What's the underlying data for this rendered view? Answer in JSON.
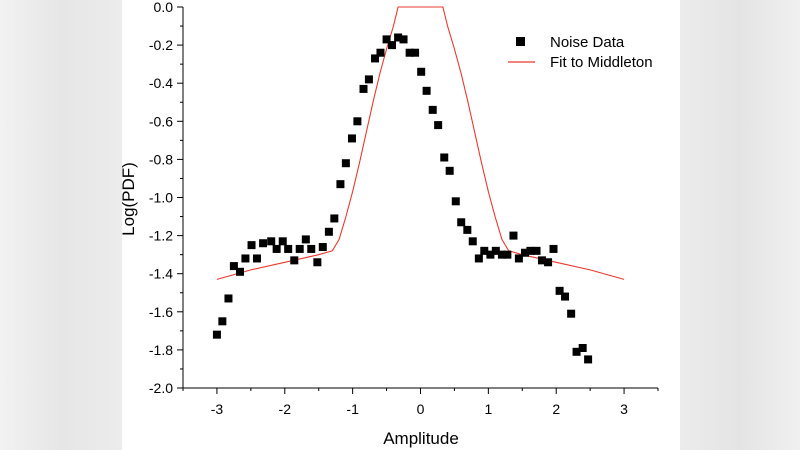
{
  "chart_data": {
    "type": "scatter",
    "xlabel": "Amplitude",
    "ylabel": "Log(PDF)",
    "xlim": [
      -3.5,
      3.5
    ],
    "ylim": [
      -2.0,
      0.0
    ],
    "xticks": [
      "-3",
      "-2",
      "-1",
      "0",
      "1",
      "2",
      "3"
    ],
    "yticks": [
      "0.0",
      "-0.2",
      "-0.4",
      "-0.6",
      "-0.8",
      "-1.0",
      "-1.2",
      "-1.4",
      "-1.6",
      "-1.8",
      "-2.0"
    ],
    "legend_position": "top-right",
    "series": [
      {
        "name": "Noise Data",
        "kind": "scatter",
        "marker": "square",
        "color": "#000000",
        "points": [
          [
            -3.0,
            -1.72
          ],
          [
            -2.92,
            -1.65
          ],
          [
            -2.83,
            -1.53
          ],
          [
            -2.75,
            -1.36
          ],
          [
            -2.66,
            -1.39
          ],
          [
            -2.58,
            -1.32
          ],
          [
            -2.49,
            -1.25
          ],
          [
            -2.41,
            -1.32
          ],
          [
            -2.32,
            -1.24
          ],
          [
            -2.2,
            -1.23
          ],
          [
            -2.12,
            -1.27
          ],
          [
            -2.03,
            -1.23
          ],
          [
            -1.95,
            -1.27
          ],
          [
            -1.86,
            -1.33
          ],
          [
            -1.78,
            -1.27
          ],
          [
            -1.69,
            -1.22
          ],
          [
            -1.61,
            -1.27
          ],
          [
            -1.52,
            -1.34
          ],
          [
            -1.44,
            -1.26
          ],
          [
            -1.35,
            -1.18
          ],
          [
            -1.27,
            -1.11
          ],
          [
            -1.18,
            -0.93
          ],
          [
            -1.1,
            -0.82
          ],
          [
            -1.01,
            -0.69
          ],
          [
            -0.93,
            -0.6
          ],
          [
            -0.84,
            -0.43
          ],
          [
            -0.76,
            -0.38
          ],
          [
            -0.67,
            -0.27
          ],
          [
            -0.59,
            -0.24
          ],
          [
            -0.5,
            -0.17
          ],
          [
            -0.42,
            -0.2
          ],
          [
            -0.33,
            -0.16
          ],
          [
            -0.25,
            -0.17
          ],
          [
            -0.16,
            -0.24
          ],
          [
            -0.08,
            -0.24
          ],
          [
            0.01,
            -0.34
          ],
          [
            0.09,
            -0.44
          ],
          [
            0.18,
            -0.54
          ],
          [
            0.26,
            -0.62
          ],
          [
            0.35,
            -0.79
          ],
          [
            0.43,
            -0.86
          ],
          [
            0.52,
            -1.02
          ],
          [
            0.6,
            -1.13
          ],
          [
            0.69,
            -1.17
          ],
          [
            0.77,
            -1.23
          ],
          [
            0.86,
            -1.32
          ],
          [
            0.94,
            -1.28
          ],
          [
            1.03,
            -1.3
          ],
          [
            1.11,
            -1.28
          ],
          [
            1.2,
            -1.3
          ],
          [
            1.28,
            -1.3
          ],
          [
            1.37,
            -1.2
          ],
          [
            1.45,
            -1.32
          ],
          [
            1.54,
            -1.29
          ],
          [
            1.62,
            -1.28
          ],
          [
            1.71,
            -1.28
          ],
          [
            1.79,
            -1.33
          ],
          [
            1.88,
            -1.34
          ],
          [
            1.96,
            -1.27
          ],
          [
            2.05,
            -1.49
          ],
          [
            2.13,
            -1.52
          ],
          [
            2.22,
            -1.61
          ],
          [
            2.3,
            -1.81
          ],
          [
            2.39,
            -1.79
          ],
          [
            2.47,
            -1.85
          ]
        ]
      },
      {
        "name": "Fit to Middleton",
        "kind": "line",
        "color": "#e8392e",
        "points": [
          [
            -3.0,
            -1.43
          ],
          [
            -2.5,
            -1.38
          ],
          [
            -2.0,
            -1.34
          ],
          [
            -1.5,
            -1.3
          ],
          [
            -1.3,
            -1.28
          ],
          [
            -1.2,
            -1.22
          ],
          [
            -1.1,
            -1.1
          ],
          [
            -1.0,
            -0.97
          ],
          [
            -0.9,
            -0.82
          ],
          [
            -0.8,
            -0.66
          ],
          [
            -0.7,
            -0.5
          ],
          [
            -0.6,
            -0.35
          ],
          [
            -0.5,
            -0.22
          ],
          [
            -0.4,
            -0.1
          ],
          [
            -0.33,
            0.0
          ],
          [
            0.33,
            0.0
          ],
          [
            0.4,
            -0.1
          ],
          [
            0.5,
            -0.22
          ],
          [
            0.6,
            -0.35
          ],
          [
            0.7,
            -0.5
          ],
          [
            0.8,
            -0.66
          ],
          [
            0.9,
            -0.82
          ],
          [
            1.0,
            -0.97
          ],
          [
            1.1,
            -1.1
          ],
          [
            1.2,
            -1.22
          ],
          [
            1.3,
            -1.28
          ],
          [
            1.5,
            -1.3
          ],
          [
            2.0,
            -1.34
          ],
          [
            2.5,
            -1.38
          ],
          [
            3.0,
            -1.43
          ]
        ]
      }
    ]
  }
}
